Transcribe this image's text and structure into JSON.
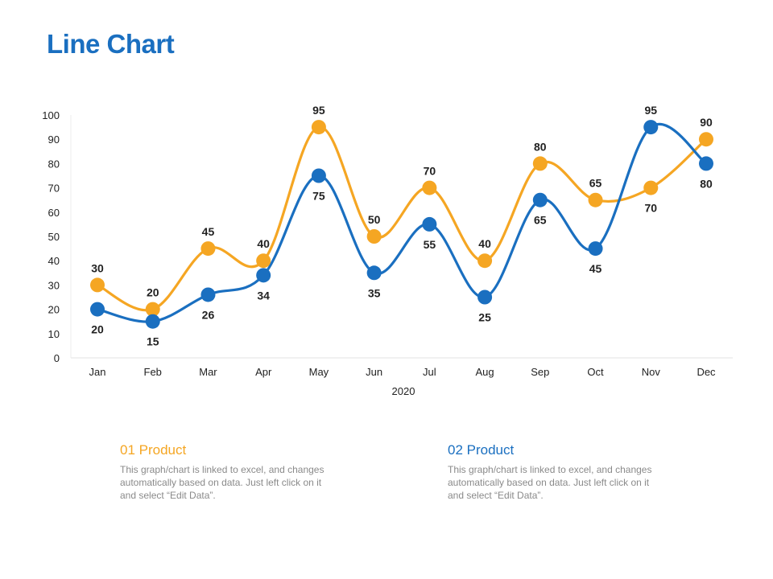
{
  "page": {
    "title": "Line Chart"
  },
  "chart_data": {
    "type": "line",
    "categories": [
      "Jan",
      "Feb",
      "Mar",
      "Apr",
      "May",
      "Jun",
      "Jul",
      "Aug",
      "Sep",
      "Oct",
      "Nov",
      "Dec"
    ],
    "series": [
      {
        "name": "01 Product",
        "color": "#f5a623",
        "values": [
          30,
          20,
          45,
          40,
          95,
          50,
          70,
          40,
          80,
          65,
          70,
          90
        ]
      },
      {
        "name": "02 Product",
        "color": "#1a6fc0",
        "values": [
          20,
          15,
          26,
          34,
          75,
          35,
          55,
          25,
          65,
          45,
          95,
          80
        ]
      }
    ],
    "xlabel": "2020",
    "ylabel": "",
    "ylim": [
      0,
      100
    ],
    "yticks": [
      0,
      10,
      20,
      30,
      40,
      50,
      60,
      70,
      80,
      90,
      100
    ],
    "grid": false
  },
  "legend": {
    "product1": {
      "title": "01 Product",
      "color": "#f5a623",
      "description": "This graph/chart is linked to excel, and changes automatically based on data. Just left click on it and select “Edit Data”."
    },
    "product2": {
      "title": "02 Product",
      "color": "#1a6fc0",
      "description": "This graph/chart is linked to excel, and changes automatically based on data. Just left click on it and select “Edit Data”."
    }
  }
}
